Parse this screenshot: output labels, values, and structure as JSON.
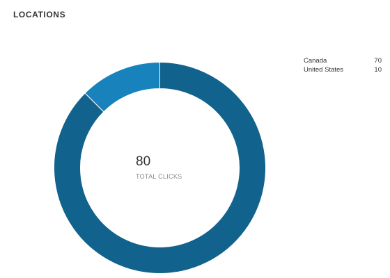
{
  "header": {
    "title": "LOCATIONS"
  },
  "center": {
    "total": "80",
    "label": "TOTAL CLICKS"
  },
  "legend": {
    "items": [
      {
        "label": "Canada",
        "value": "70"
      },
      {
        "label": "United States",
        "value": "10"
      }
    ]
  },
  "chart_data": {
    "type": "pie",
    "variant": "donut",
    "title": "LOCATIONS",
    "total": 80,
    "total_label": "TOTAL CLICKS",
    "categories": [
      "Canada",
      "United States"
    ],
    "values": [
      70,
      10
    ],
    "colors": [
      "#11638d",
      "#1882bd"
    ],
    "legend_position": "top-right"
  }
}
